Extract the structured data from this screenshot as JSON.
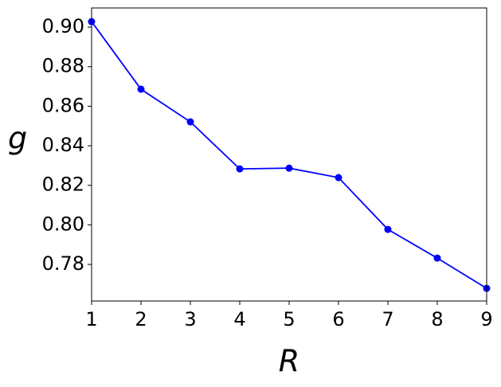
{
  "chart_data": {
    "type": "line",
    "x": [
      1,
      2,
      3,
      4,
      5,
      6,
      7,
      8,
      9
    ],
    "series": [
      {
        "color": "#0000ff",
        "values": [
          0.9028,
          0.8686,
          0.8521,
          0.8283,
          0.8287,
          0.8239,
          0.7977,
          0.7832,
          0.7679
        ]
      }
    ],
    "xlim": [
      1,
      9
    ],
    "xticks": [
      1,
      2,
      3,
      4,
      5,
      6,
      7,
      8,
      9
    ],
    "ylim": [
      0.7615,
      0.9097
    ],
    "yticks": [
      {
        "value": 0.78,
        "label": "0.78"
      },
      {
        "value": 0.8,
        "label": "0.80"
      },
      {
        "value": 0.82,
        "label": "0.82"
      },
      {
        "value": 0.84,
        "label": "0.84"
      },
      {
        "value": 0.86,
        "label": "0.86"
      },
      {
        "value": 0.88,
        "label": "0.88"
      },
      {
        "value": 0.9,
        "label": "0.90"
      }
    ],
    "xlabel": "R",
    "ylabel": "g",
    "grid": false
  }
}
